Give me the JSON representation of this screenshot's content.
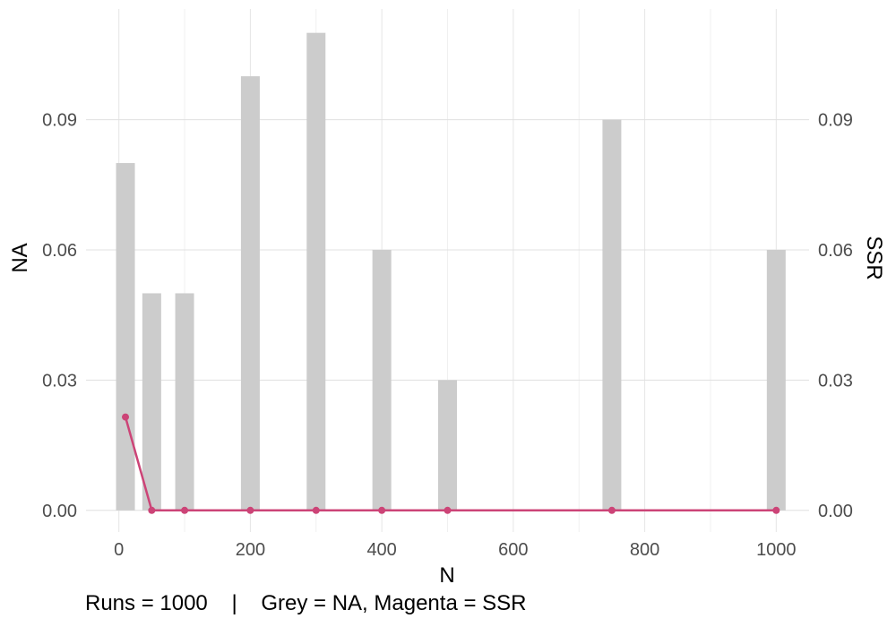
{
  "chart_data": {
    "type": "bar",
    "x": [
      10,
      50,
      100,
      200,
      300,
      400,
      500,
      750,
      1000
    ],
    "series": [
      {
        "name": "NA",
        "type": "bar",
        "color": "#cccccc",
        "values": [
          0.08,
          0.05,
          0.05,
          0.1,
          0.11,
          0.06,
          0.03,
          0.09,
          0.06
        ]
      },
      {
        "name": "SSR",
        "type": "line",
        "color": "#cc4477",
        "values": [
          0.0215,
          0.0,
          0.0,
          0.0,
          0.0,
          0.0,
          0.0,
          0.0,
          0.0
        ]
      }
    ],
    "xlabel": "N",
    "ylabel": "NA",
    "y2label": "SSR",
    "xlim": [
      -50,
      1050
    ],
    "ylim": [
      -0.005,
      0.1155
    ],
    "x_ticks": [
      0,
      200,
      400,
      600,
      800,
      1000
    ],
    "x_tick_labels": [
      "0",
      "200",
      "400",
      "600",
      "800",
      "1000"
    ],
    "y_ticks": [
      0,
      0.03,
      0.06,
      0.09
    ],
    "y_tick_labels": [
      "0.00",
      "0.03",
      "0.06",
      "0.09"
    ],
    "y2_tick_labels": [
      "0.00",
      "0.03",
      "0.06",
      "0.09"
    ],
    "grid": true
  },
  "caption": {
    "runs": "Runs = 1000",
    "separator": "|",
    "legend_text": "Grey = NA, Magenta = SSR"
  }
}
